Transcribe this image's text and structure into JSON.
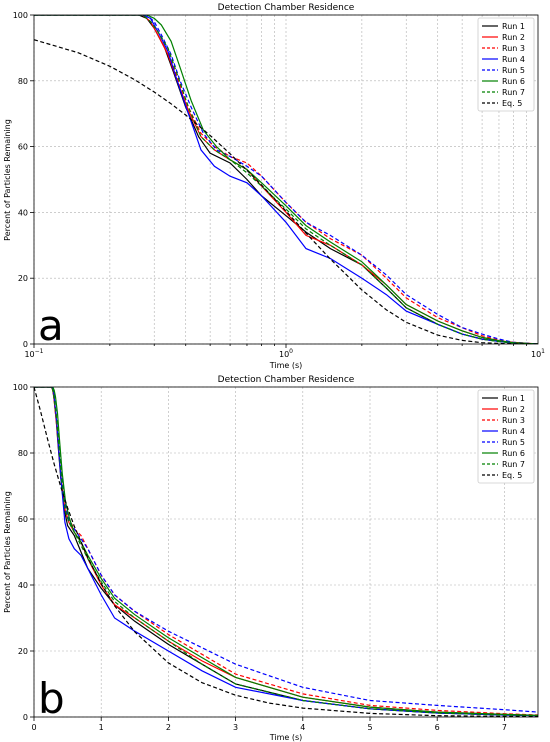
{
  "chart_data": [
    {
      "type": "line",
      "panel_label": "a",
      "title": "Detection Chamber Residence",
      "xlabel": "Time (s)",
      "ylabel": "Percent of Particles Remaining",
      "xscale": "log",
      "xlim": [
        0.1,
        10
      ],
      "ylim": [
        0,
        100
      ],
      "xticks": [
        {
          "value": 0.1,
          "base": "10",
          "exp": "−1"
        },
        {
          "value": 1,
          "base": "10",
          "exp": "0"
        },
        {
          "value": 10,
          "base": "10",
          "exp": "1"
        }
      ],
      "yticks": [
        0,
        20,
        40,
        60,
        80,
        100
      ],
      "grid": true,
      "legend_position": "top-right",
      "series": [
        {
          "name": "Run 1",
          "color": "#000000",
          "style": "solid",
          "x": [
            0.1,
            0.26,
            0.28,
            0.3,
            0.33,
            0.36,
            0.4,
            0.45,
            0.5,
            0.6,
            0.7,
            0.8,
            1.0,
            1.2,
            1.5,
            2.0,
            2.5,
            3.0,
            4.0,
            5.0,
            6.0,
            7.0,
            8.0,
            10.0
          ],
          "y": [
            100,
            100,
            99,
            96,
            90,
            82,
            72,
            63,
            58,
            55,
            50,
            45,
            39,
            34,
            29,
            24,
            17,
            11,
            6,
            3,
            1.5,
            0.8,
            0.3,
            0
          ]
        },
        {
          "name": "Run 2",
          "color": "#ff0000",
          "style": "solid",
          "x": [
            0.1,
            0.27,
            0.29,
            0.31,
            0.34,
            0.37,
            0.41,
            0.46,
            0.52,
            0.6,
            0.7,
            0.8,
            1.0,
            1.2,
            1.5,
            2.0,
            2.5,
            3.0,
            4.0,
            5.0,
            6.0,
            7.0,
            8.0,
            10.0
          ],
          "y": [
            100,
            100,
            98,
            94,
            88,
            80,
            71,
            63,
            59,
            56,
            53,
            48,
            40,
            33,
            30,
            24,
            18,
            12,
            7,
            4,
            2,
            1,
            0.5,
            0
          ]
        },
        {
          "name": "Run 3",
          "color": "#ff0000",
          "style": "dashed",
          "x": [
            0.1,
            0.27,
            0.29,
            0.31,
            0.34,
            0.37,
            0.41,
            0.46,
            0.52,
            0.6,
            0.7,
            0.8,
            1.0,
            1.2,
            1.5,
            2.0,
            2.5,
            3.0,
            4.0,
            5.0,
            6.0,
            7.0,
            8.0,
            10.0
          ],
          "y": [
            100,
            100,
            98,
            95,
            89,
            81,
            72,
            64,
            60,
            57,
            55,
            51,
            43,
            37,
            32,
            27,
            20,
            14,
            8,
            5,
            2.5,
            1.2,
            0.5,
            0
          ]
        },
        {
          "name": "Run 4",
          "color": "#0000ff",
          "style": "solid",
          "x": [
            0.1,
            0.27,
            0.29,
            0.31,
            0.34,
            0.37,
            0.41,
            0.46,
            0.52,
            0.6,
            0.7,
            0.8,
            1.0,
            1.2,
            1.5,
            2.0,
            2.5,
            3.0,
            4.0,
            5.0,
            6.0,
            7.0,
            8.0,
            10.0
          ],
          "y": [
            100,
            100,
            99,
            95,
            89,
            80,
            70,
            59,
            54,
            51,
            49,
            45,
            37,
            29,
            26,
            20,
            15,
            10,
            6,
            3,
            1.5,
            0.8,
            0.3,
            0
          ]
        },
        {
          "name": "Run 5",
          "color": "#0000ff",
          "style": "dashed",
          "x": [
            0.1,
            0.28,
            0.3,
            0.32,
            0.35,
            0.38,
            0.42,
            0.47,
            0.53,
            0.6,
            0.7,
            0.8,
            1.0,
            1.2,
            1.5,
            2.0,
            2.5,
            3.0,
            4.0,
            5.0,
            6.0,
            7.0,
            8.0,
            10.0
          ],
          "y": [
            100,
            100,
            98,
            94,
            88,
            80,
            72,
            64,
            59,
            57,
            54,
            51,
            43,
            37,
            33,
            27,
            21,
            15,
            9,
            5,
            3,
            1.5,
            0.5,
            0
          ]
        },
        {
          "name": "Run 6",
          "color": "#008000",
          "style": "solid",
          "x": [
            0.1,
            0.28,
            0.3,
            0.32,
            0.35,
            0.38,
            0.42,
            0.47,
            0.53,
            0.6,
            0.7,
            0.8,
            1.0,
            1.2,
            1.5,
            2.0,
            2.5,
            3.0,
            4.0,
            5.0,
            6.0,
            7.0,
            8.0,
            10.0
          ],
          "y": [
            100,
            100,
            99,
            97,
            92,
            84,
            74,
            65,
            60,
            56,
            53,
            49,
            42,
            36,
            31,
            25,
            18,
            12,
            7,
            4,
            2,
            1,
            0.4,
            0
          ]
        },
        {
          "name": "Run 7",
          "color": "#008000",
          "style": "dashed",
          "x": [
            0.1,
            0.27,
            0.29,
            0.31,
            0.34,
            0.37,
            0.41,
            0.46,
            0.52,
            0.6,
            0.7,
            0.8,
            1.0,
            1.2,
            1.5,
            2.0,
            2.5,
            3.0,
            4.0,
            5.0,
            6.0,
            7.0,
            8.0,
            10.0
          ],
          "y": [
            100,
            100,
            98,
            95,
            90,
            82,
            72,
            63,
            59,
            56,
            52,
            48,
            41,
            35,
            30,
            24,
            17,
            11,
            6,
            3,
            1.5,
            0.7,
            0.3,
            0
          ]
        },
        {
          "name": "Eq.  5",
          "color": "#000000",
          "style": "dashed",
          "x": [
            0.1,
            0.15,
            0.2,
            0.25,
            0.3,
            0.35,
            0.4,
            0.5,
            0.6,
            0.7,
            0.8,
            1.0,
            1.2,
            1.5,
            2.0,
            2.5,
            3.0,
            4.0,
            5.0,
            6.0,
            7.0,
            8.0,
            10.0
          ],
          "y": [
            92.5,
            88.5,
            84.4,
            80.4,
            76.6,
            73.0,
            69.6,
            63.4,
            57.8,
            52.8,
            48.3,
            40.4,
            33.7,
            25.8,
            16.4,
            10.4,
            6.6,
            2.7,
            1.1,
            0.4,
            0.18,
            0.07,
            0.01
          ]
        }
      ]
    },
    {
      "type": "line",
      "panel_label": "b",
      "title": "Detection Chamber Residence",
      "xlabel": "Time (s)",
      "ylabel": "Percent of Particles Remaining",
      "xscale": "linear",
      "xlim": [
        0,
        7.5
      ],
      "ylim": [
        0,
        100
      ],
      "xticks": [
        0,
        1,
        2,
        3,
        4,
        5,
        6,
        7
      ],
      "yticks": [
        0,
        20,
        40,
        60,
        80,
        100
      ],
      "grid": true,
      "legend_position": "top-right",
      "series": [
        {
          "name": "Run 1",
          "color": "#000000",
          "style": "solid",
          "x": [
            0,
            0.26,
            0.28,
            0.3,
            0.33,
            0.36,
            0.4,
            0.45,
            0.5,
            0.6,
            0.7,
            0.8,
            1.0,
            1.2,
            1.5,
            2.0,
            2.5,
            3.0,
            4.0,
            5.0,
            6.0,
            7.0,
            7.5
          ],
          "y": [
            100,
            100,
            99,
            96,
            90,
            82,
            72,
            63,
            58,
            55,
            50,
            45,
            39,
            34,
            29,
            22,
            16,
            10,
            5,
            2.5,
            1.2,
            0.6,
            0.4
          ]
        },
        {
          "name": "Run 2",
          "color": "#ff0000",
          "style": "solid",
          "x": [
            0,
            0.27,
            0.29,
            0.31,
            0.34,
            0.37,
            0.41,
            0.46,
            0.52,
            0.6,
            0.7,
            0.8,
            1.0,
            1.2,
            1.5,
            2.0,
            2.5,
            3.0,
            4.0,
            5.0,
            6.0,
            7.0,
            7.5
          ],
          "y": [
            100,
            100,
            98,
            94,
            88,
            80,
            71,
            63,
            59,
            56,
            53,
            48,
            40,
            34,
            30,
            23,
            17,
            12,
            6,
            3,
            1.5,
            0.8,
            0.5
          ]
        },
        {
          "name": "Run 3",
          "color": "#ff0000",
          "style": "dashed",
          "x": [
            0,
            0.27,
            0.29,
            0.31,
            0.34,
            0.37,
            0.41,
            0.46,
            0.52,
            0.6,
            0.7,
            0.8,
            1.0,
            1.2,
            1.5,
            2.0,
            2.5,
            3.0,
            4.0,
            5.0,
            6.0,
            7.0,
            7.5
          ],
          "y": [
            100,
            100,
            98,
            95,
            89,
            81,
            72,
            64,
            60,
            57,
            55,
            51,
            43,
            37,
            32,
            25,
            19,
            13,
            7,
            3.5,
            2,
            1,
            0.6
          ]
        },
        {
          "name": "Run 4",
          "color": "#0000ff",
          "style": "solid",
          "x": [
            0,
            0.27,
            0.29,
            0.31,
            0.34,
            0.37,
            0.41,
            0.46,
            0.52,
            0.6,
            0.7,
            0.8,
            1.0,
            1.2,
            1.5,
            2.0,
            2.5,
            3.0,
            4.0,
            5.0,
            6.0,
            7.0,
            7.5
          ],
          "y": [
            100,
            100,
            99,
            95,
            89,
            80,
            70,
            59,
            54,
            51,
            49,
            45,
            37,
            30,
            26,
            20,
            14,
            9,
            5,
            2.5,
            1.2,
            0.6,
            0.4
          ]
        },
        {
          "name": "Run 5",
          "color": "#0000ff",
          "style": "dashed",
          "x": [
            0,
            0.28,
            0.3,
            0.32,
            0.35,
            0.38,
            0.42,
            0.47,
            0.53,
            0.6,
            0.7,
            0.8,
            1.0,
            1.2,
            1.5,
            2.0,
            2.5,
            3.0,
            4.0,
            5.0,
            6.0,
            7.0,
            7.5
          ],
          "y": [
            100,
            100,
            98,
            94,
            88,
            80,
            72,
            64,
            59,
            57,
            54,
            51,
            43,
            37,
            32,
            26,
            21,
            16,
            9,
            5,
            3.5,
            2.2,
            1.5
          ]
        },
        {
          "name": "Run 6",
          "color": "#008000",
          "style": "solid",
          "x": [
            0,
            0.28,
            0.3,
            0.32,
            0.35,
            0.38,
            0.42,
            0.47,
            0.53,
            0.6,
            0.7,
            0.8,
            1.0,
            1.2,
            1.5,
            2.0,
            2.5,
            3.0,
            4.0,
            5.0,
            6.0,
            7.0,
            7.5
          ],
          "y": [
            100,
            100,
            99,
            97,
            92,
            84,
            74,
            65,
            60,
            56,
            53,
            49,
            42,
            36,
            31,
            24,
            18,
            12,
            6,
            3,
            1.5,
            0.8,
            0.5
          ]
        },
        {
          "name": "Run 7",
          "color": "#008000",
          "style": "dashed",
          "x": [
            0,
            0.27,
            0.29,
            0.31,
            0.34,
            0.37,
            0.41,
            0.46,
            0.52,
            0.6,
            0.7,
            0.8,
            1.0,
            1.2,
            1.5,
            2.0,
            2.5,
            3.0,
            4.0,
            5.0,
            6.0,
            7.0,
            7.5
          ],
          "y": [
            100,
            100,
            98,
            95,
            90,
            82,
            72,
            63,
            59,
            56,
            52,
            48,
            41,
            35,
            30,
            23,
            16,
            10,
            5,
            2.5,
            1.2,
            0.6,
            0.4
          ]
        },
        {
          "name": "Eq.  5",
          "color": "#000000",
          "style": "dashed",
          "x": [
            0,
            0.1,
            0.2,
            0.3,
            0.4,
            0.5,
            0.6,
            0.8,
            1.0,
            1.2,
            1.5,
            2.0,
            2.5,
            3.0,
            3.5,
            4.0,
            5.0,
            6.0,
            7.0,
            7.5
          ],
          "y": [
            100,
            92.5,
            84.4,
            76.6,
            69.6,
            63.4,
            57.8,
            48.3,
            40.4,
            33.7,
            25.8,
            16.4,
            10.4,
            6.6,
            4.2,
            2.7,
            1.1,
            0.4,
            0.18,
            0.12
          ]
        }
      ]
    }
  ]
}
